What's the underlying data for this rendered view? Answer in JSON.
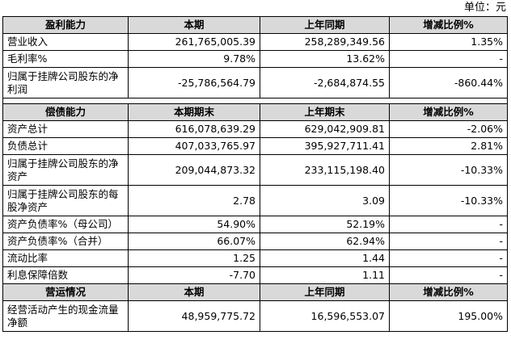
{
  "unit": "单位：元",
  "sections": [
    {
      "headers": [
        "盈利能力",
        "本期",
        "上年同期",
        "增减比例%"
      ],
      "rows": [
        {
          "label": "营业收入",
          "v1": "261,765,005.39",
          "v2": "258,289,349.56",
          "v3": "1.35%"
        },
        {
          "label": "毛利率%",
          "v1": "9.78%",
          "v2": "13.62%",
          "v3": "-"
        },
        {
          "label": "归属于挂牌公司股东的净利润",
          "v1": "-25,786,564.79",
          "v2": "-2,684,874.55",
          "v3": "-860.44%"
        }
      ]
    },
    {
      "headers": [
        "偿债能力",
        "本期期末",
        "上年期末",
        "增减比例%"
      ],
      "rows": [
        {
          "label": "资产总计",
          "v1": "616,078,639.29",
          "v2": "629,042,909.81",
          "v3": "-2.06%"
        },
        {
          "label": "负债总计",
          "v1": "407,033,765.97",
          "v2": "395,927,711.41",
          "v3": "2.81%"
        },
        {
          "label": "归属于挂牌公司股东的净资产",
          "v1": "209,044,873.32",
          "v2": "233,115,198.40",
          "v3": "-10.33%"
        },
        {
          "label": "归属于挂牌公司股东的每股净资产",
          "v1": "2.78",
          "v2": "3.09",
          "v3": "-10.33%"
        },
        {
          "label": "资产负债率%（母公司）",
          "v1": "54.90%",
          "v2": "52.19%",
          "v3": "-"
        },
        {
          "label": "资产负债率%（合并）",
          "v1": "66.07%",
          "v2": "62.94%",
          "v3": "-"
        },
        {
          "label": "流动比率",
          "v1": "1.25",
          "v2": "1.44",
          "v3": "-"
        },
        {
          "label": "利息保障倍数",
          "v1": "-7.70",
          "v2": "1.11",
          "v3": "-"
        }
      ]
    },
    {
      "headers": [
        "营运情况",
        "本期",
        "上年同期",
        "增减比例%"
      ],
      "rows": [
        {
          "label": "经营活动产生的现金流量净额",
          "v1": "48,959,775.72",
          "v2": "16,596,553.07",
          "v3": "195.00%"
        }
      ]
    }
  ]
}
